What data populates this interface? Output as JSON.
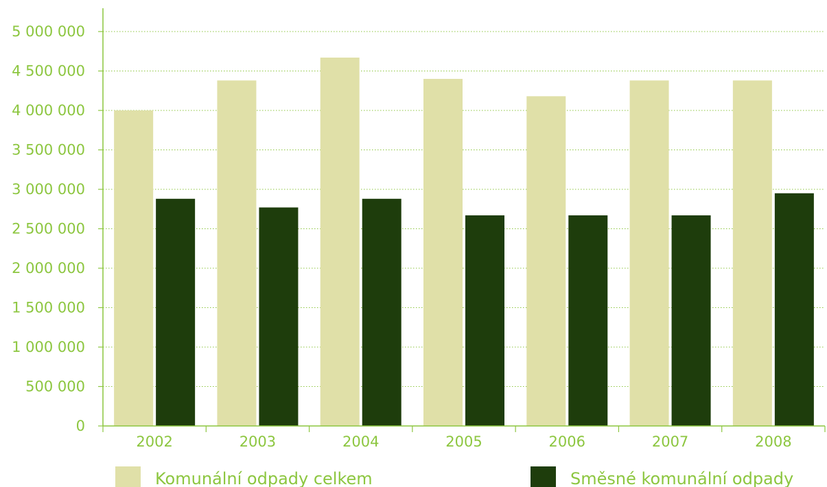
{
  "chart_data": {
    "type": "bar",
    "categories": [
      "2002",
      "2003",
      "2004",
      "2005",
      "2006",
      "2007",
      "2008"
    ],
    "series": [
      {
        "name": "Komunální odpady celkem",
        "color": "#e0e0a8",
        "values": [
          4000000,
          4380000,
          4670000,
          4400000,
          4180000,
          4380000,
          4380000
        ]
      },
      {
        "name": "Směsné komunální odpady",
        "color": "#1e3d0c",
        "values": [
          2880000,
          2770000,
          2880000,
          2670000,
          2670000,
          2670000,
          2950000
        ]
      }
    ],
    "ylim": [
      0,
      5000000
    ],
    "yticks": [
      0,
      500000,
      1000000,
      1500000,
      2000000,
      2500000,
      3000000,
      3500000,
      4000000,
      4500000,
      5000000
    ],
    "ytick_labels": [
      "0",
      "500 000",
      "1 000 000",
      "1 500 000",
      "2 000 000",
      "2 500 000",
      "3 000 000",
      "3 500 000",
      "4 000 000",
      "4 500 000",
      "5 000 000"
    ],
    "grid": true,
    "legend_position": "bottom",
    "axis_color": "#8cc63f",
    "grid_color": "#8cc63f",
    "text_color": "#8cc63f"
  }
}
